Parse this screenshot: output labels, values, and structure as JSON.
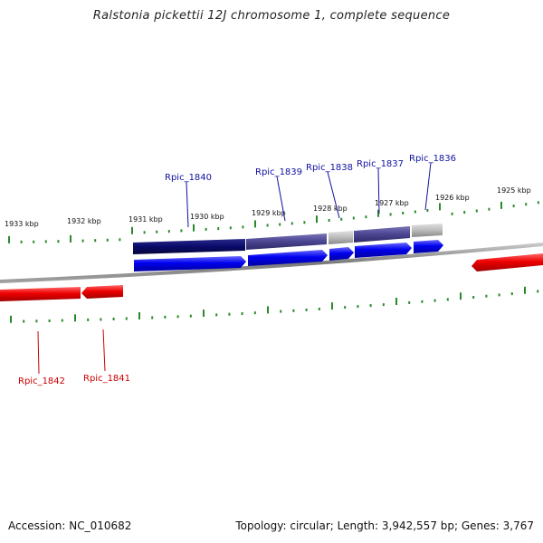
{
  "title": "Ralstonia pickettii 12J chromosome 1, complete sequence",
  "footer": {
    "accession": "Accession: NC_010682",
    "summary": "Topology: circular; Length: 3,942,557 bp; Genes: 3,767"
  },
  "colors": {
    "backbone": "#8a8a8a",
    "tick": "#2a8a2a",
    "gene_forward": "#0000ee",
    "gene_reverse": "#ee0000",
    "label_forward": "#1010a0",
    "label_reverse": "#cc0000",
    "feature_navy": "#0a0a6a",
    "feature_slate": "#4a4490",
    "feature_grey": "#bbbbbb"
  },
  "chart_data": {
    "type": "genome-map",
    "ticks": [
      {
        "label": "1933 kbp"
      },
      {
        "label": "1932 kbp"
      },
      {
        "label": "1931 kbp"
      },
      {
        "label": "1930 kbp"
      },
      {
        "label": "1929 kbp"
      },
      {
        "label": "1928 kbp"
      },
      {
        "label": "1927 kbp"
      },
      {
        "label": "1926 kbp"
      },
      {
        "label": "1925 kbp"
      }
    ],
    "forward_genes": [
      {
        "name": "Rpic_1840"
      },
      {
        "name": "Rpic_1839"
      },
      {
        "name": "Rpic_1838"
      },
      {
        "name": "Rpic_1837"
      },
      {
        "name": "Rpic_1836"
      }
    ],
    "reverse_genes": [
      {
        "name": "Rpic_1842"
      },
      {
        "name": "Rpic_1841"
      }
    ]
  }
}
